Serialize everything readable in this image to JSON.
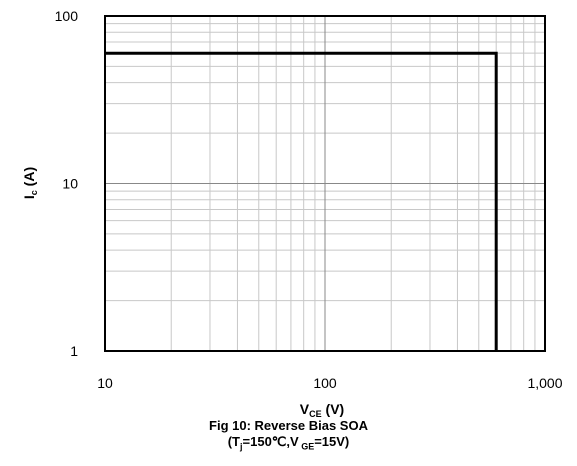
{
  "chart_data": {
    "type": "line",
    "title": "Fig 10: Reverse Bias SOA",
    "conditions": {
      "prefix": "(T",
      "tj_sub": "j",
      "mid": "=150℃,V",
      "vge_sub": " GE",
      "suffix": "=15V)"
    },
    "xlabel": {
      "main": "V",
      "sub": "CE",
      "unit": " (V)"
    },
    "ylabel": {
      "main": "I",
      "sub": "c",
      "unit": " (A)"
    },
    "x_scale": "log",
    "y_scale": "log",
    "xlim": [
      10,
      1000
    ],
    "ylim": [
      1,
      100
    ],
    "x_ticks": [
      {
        "value": 10,
        "label": "10"
      },
      {
        "value": 100,
        "label": "100"
      },
      {
        "value": 1000,
        "label": "1,000"
      }
    ],
    "y_ticks": [
      {
        "value": 1,
        "label": "1"
      },
      {
        "value": 10,
        "label": "10"
      },
      {
        "value": 100,
        "label": "100"
      }
    ],
    "grid": true,
    "series": [
      {
        "color": "#000000",
        "points": [
          {
            "x": 10,
            "y": 60
          },
          {
            "x": 600,
            "y": 60
          },
          {
            "x": 600,
            "y": 1
          }
        ]
      }
    ]
  }
}
